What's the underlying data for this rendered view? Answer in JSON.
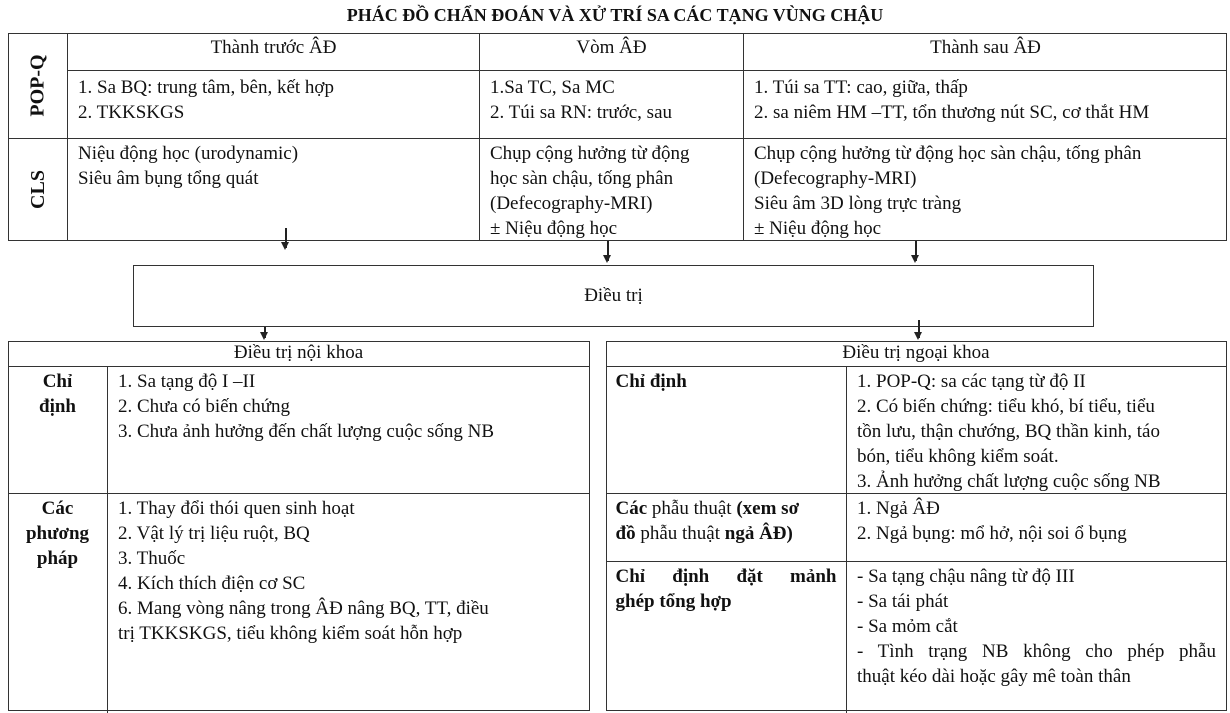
{
  "title": "PHÁC ĐỒ CHẨN ĐOÁN VÀ XỬ TRÍ  SA CÁC TẠNG VÙNG CHẬU",
  "top_table": {
    "row_labels": [
      "POP-Q",
      "CLS"
    ],
    "columns": [
      "Thành trước ÂĐ",
      "Vòm ÂĐ",
      "Thành sau ÂĐ"
    ],
    "popq": [
      [
        "1. Sa BQ: trung tâm, bên, kết hợp",
        "2. TKKSKGS"
      ],
      [
        "1.Sa TC, Sa MC",
        "2. Túi sa RN: trước, sau"
      ],
      [
        "1. Túi sa TT: cao, giữa, thấp",
        "2. sa niêm HM –TT, tổn thương nút SC, cơ thắt HM"
      ]
    ],
    "cls": [
      [
        "Niệu động học (urodynamic)",
        "Siêu âm bụng tổng quát"
      ],
      [
        "Chụp cộng hưởng từ động",
        "học sàn chậu, tống phân",
        "(Defecography-MRI)",
        "± Niệu động học"
      ],
      [
        "Chụp cộng hưởng từ động học sàn chậu, tống phân",
        "(Defecography-MRI)",
        "Siêu âm 3D lòng trực tràng",
        "± Niệu động học"
      ]
    ]
  },
  "treatment_box": "Điều trị",
  "medical": {
    "header": "Điều trị nội khoa",
    "rows": [
      {
        "label": [
          "Chỉ",
          "định"
        ],
        "items": [
          "1. Sa tạng độ I –II",
          "2. Chưa có biến chứng",
          "3. Chưa ảnh hưởng đến chất lượng cuộc sống NB"
        ]
      },
      {
        "label": [
          "Các",
          "phương",
          "pháp"
        ],
        "items": [
          "1. Thay đổi thói quen sinh hoạt",
          "2. Vật lý trị liệu ruột, BQ",
          "3. Thuốc",
          "4. Kích thích điện cơ SC",
          "6. Mang vòng nâng trong ÂĐ nâng BQ, TT, điều",
          "trị TKKSKGS, tiểu không kiểm soát hỗn hợp"
        ]
      }
    ]
  },
  "surgical": {
    "header": "Điều trị ngoại khoa",
    "rows": [
      {
        "label": [
          "Chỉ định"
        ],
        "items": [
          "1. POP-Q: sa các tạng từ độ II",
          "2. Có biến chứng: tiểu khó, bí tiểu, tiểu",
          "tồn lưu, thận chướng, BQ thần kinh, táo",
          "bón, tiểu không kiểm soát.",
          "3. Ảnh hưởng chất lượng cuộc sống NB"
        ]
      },
      {
        "label_parts": {
          "a": "Các",
          "b": " phẫu thuật ",
          "c": "(xem sơ",
          "d": "đồ",
          "e": " phẫu thuật ",
          "f": "ngả ÂĐ)"
        },
        "items": [
          "1. Ngả ÂĐ",
          "2. Ngả bụng: mổ hở, nội soi ổ bụng"
        ]
      },
      {
        "label": [
          "Chỉ định đặt mảnh",
          "ghép tổng hợp"
        ],
        "items": [
          "- Sa tạng chậu nâng từ độ III",
          "- Sa tái phát",
          "- Sa mỏm cắt",
          "- Tình trạng NB không cho phép phẫu",
          "thuật  kéo dài hoặc gây mê toàn thân"
        ]
      }
    ]
  }
}
